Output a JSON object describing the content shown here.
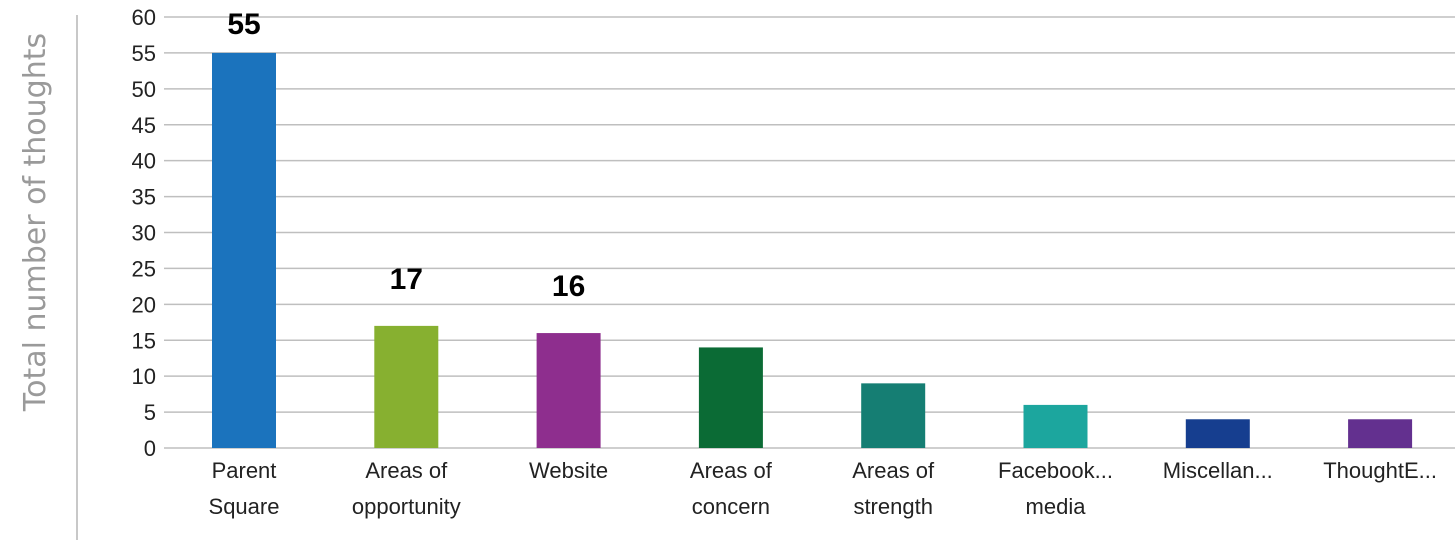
{
  "chart_data": {
    "type": "bar",
    "title": "",
    "xlabel": "",
    "ylabel": "Total number of thoughts",
    "ylim": [
      0,
      60
    ],
    "yticks": [
      0,
      5,
      10,
      15,
      20,
      25,
      30,
      35,
      40,
      45,
      50,
      55,
      60
    ],
    "grid": true,
    "categories": [
      [
        "Parent",
        "Square"
      ],
      [
        "Areas of",
        "opportunity"
      ],
      [
        "Website"
      ],
      [
        "Areas of",
        "concern"
      ],
      [
        "Areas of",
        "strength"
      ],
      [
        "Facebook...",
        "media"
      ],
      [
        "Miscellan..."
      ],
      [
        "ThoughtE..."
      ]
    ],
    "values": [
      55,
      17,
      16,
      14,
      9,
      6,
      4,
      4
    ],
    "data_labels": [
      "55",
      "17",
      "16",
      "",
      "",
      "",
      "",
      ""
    ],
    "colors": [
      "#1b73bd",
      "#87b030",
      "#8e2e8e",
      "#0b6b35",
      "#157e73",
      "#1ca69e",
      "#163e8f",
      "#63308f"
    ],
    "grid_color": "#bfbfbf",
    "axis_label_color": "#9a9a9a"
  }
}
